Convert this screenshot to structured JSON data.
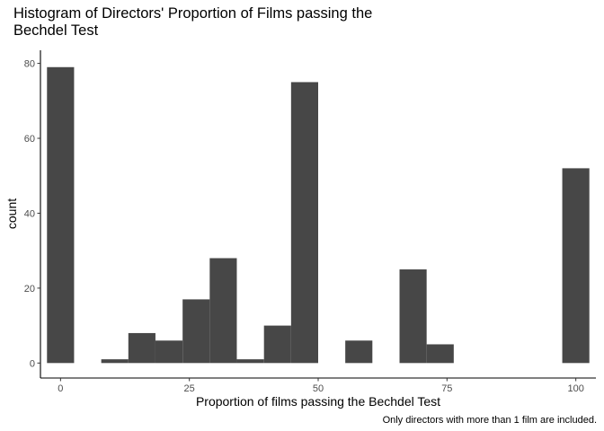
{
  "chart_data": {
    "type": "bar",
    "title": "Histogram of Directors' Proportion of Films passing the Bechdel Test",
    "title_lines": [
      "Histogram of Directors' Proportion of Films passing the",
      "Bechdel Test"
    ],
    "xlabel": "Proportion of films passing the Bechdel Test",
    "ylabel": "count",
    "caption": "Only directors with more than 1 film are included.",
    "xlim": [
      -3.9,
      103.9
    ],
    "ylim": [
      -4,
      83.5
    ],
    "x_ticks": [
      0,
      25,
      50,
      75,
      100
    ],
    "y_ticks": [
      0,
      20,
      40,
      60,
      80
    ],
    "bin_width": 5.26,
    "bins": [
      {
        "center": 0.0,
        "count": 79
      },
      {
        "center": 5.26,
        "count": 0
      },
      {
        "center": 10.53,
        "count": 1
      },
      {
        "center": 15.79,
        "count": 8
      },
      {
        "center": 21.05,
        "count": 6
      },
      {
        "center": 26.32,
        "count": 17
      },
      {
        "center": 31.58,
        "count": 28
      },
      {
        "center": 36.84,
        "count": 1
      },
      {
        "center": 42.11,
        "count": 10
      },
      {
        "center": 47.37,
        "count": 75
      },
      {
        "center": 52.63,
        "count": 0
      },
      {
        "center": 57.89,
        "count": 6
      },
      {
        "center": 63.16,
        "count": 0
      },
      {
        "center": 68.42,
        "count": 25
      },
      {
        "center": 73.68,
        "count": 5
      },
      {
        "center": 78.95,
        "count": 0
      },
      {
        "center": 84.21,
        "count": 0
      },
      {
        "center": 89.47,
        "count": 0
      },
      {
        "center": 94.74,
        "count": 0
      },
      {
        "center": 100.0,
        "count": 52
      }
    ],
    "bar_color": "#474747",
    "grid": false,
    "legend": "none"
  }
}
